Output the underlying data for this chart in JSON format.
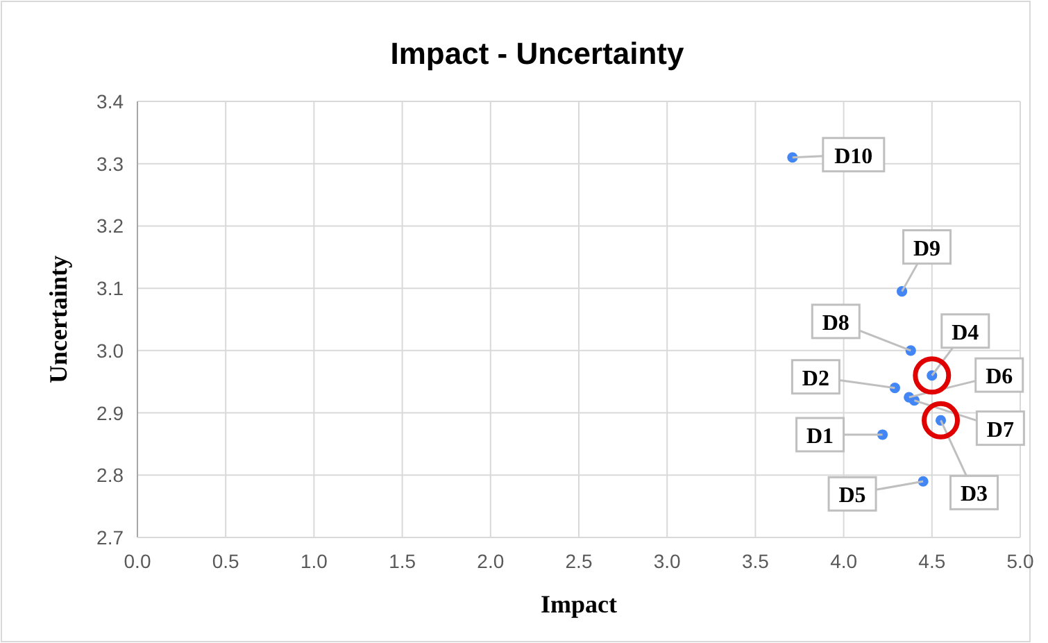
{
  "chart_data": {
    "type": "scatter",
    "title": "Impact - Uncertainty",
    "xlabel": "Impact",
    "ylabel": "Uncertainty",
    "x": [
      4.22,
      4.29,
      4.55,
      4.5,
      4.45,
      4.37,
      4.4,
      4.38,
      4.33,
      3.71
    ],
    "series": [
      {
        "color": "#4285f4",
        "values": [
          2.865,
          2.94,
          2.888,
          2.96,
          2.79,
          2.925,
          2.92,
          3.0,
          3.095,
          3.31
        ]
      }
    ],
    "xlim": [
      0,
      5
    ],
    "xticks": [
      {
        "value": 0,
        "label": "0.0"
      },
      {
        "value": 0.5,
        "label": "0.5"
      },
      {
        "value": 1,
        "label": "1.0"
      },
      {
        "value": 1.5,
        "label": "1.5"
      },
      {
        "value": 2,
        "label": "2.0"
      },
      {
        "value": 2.5,
        "label": "2.5"
      },
      {
        "value": 3,
        "label": "3.0"
      },
      {
        "value": 3.5,
        "label": "3.5"
      },
      {
        "value": 4,
        "label": "4.0"
      },
      {
        "value": 4.5,
        "label": "4.5"
      },
      {
        "value": 5,
        "label": "5.0"
      }
    ],
    "ylim": [
      2.7,
      3.4
    ],
    "yticks": [
      2.7,
      2.8,
      2.9,
      {
        "value": 3,
        "label": "3.0"
      },
      3.1,
      3.2,
      3.3,
      3.4
    ],
    "grid": true,
    "marker": "circle",
    "annotations": [
      {
        "text": "D1",
        "x": 4.22,
        "y": 2.865
      },
      {
        "text": "D2",
        "x": 4.29,
        "y": 2.94
      },
      {
        "text": "D3",
        "x": 4.55,
        "y": 2.888
      },
      {
        "text": "D4",
        "x": 4.5,
        "y": 2.96
      },
      {
        "text": "D5",
        "x": 4.45,
        "y": 2.79
      },
      {
        "text": "D6",
        "x": 4.37,
        "y": 2.925
      },
      {
        "text": "D7",
        "x": 4.4,
        "y": 2.92
      },
      {
        "text": "D8",
        "x": 4.38,
        "y": 3.0
      },
      {
        "text": "D9",
        "x": 4.33,
        "y": 3.095
      },
      {
        "text": "D10",
        "x": 3.71,
        "y": 3.31
      }
    ]
  }
}
